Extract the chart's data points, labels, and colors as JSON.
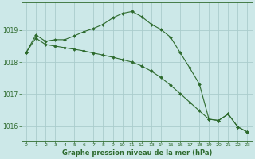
{
  "line1_x": [
    0,
    1,
    2,
    3,
    4,
    5,
    6,
    7,
    8,
    9,
    10,
    11,
    12,
    13,
    14,
    15,
    16,
    17,
    18,
    19,
    20,
    21,
    22,
    23
  ],
  "line1_y": [
    1018.3,
    1018.85,
    1018.65,
    1018.7,
    1018.7,
    1018.82,
    1018.95,
    1019.05,
    1019.18,
    1019.38,
    1019.52,
    1019.58,
    1019.42,
    1019.18,
    1019.02,
    1018.78,
    1018.3,
    1017.82,
    1017.32,
    1016.22,
    1016.18,
    1016.38,
    1015.98,
    1015.82
  ],
  "line2_x": [
    0,
    1,
    2,
    3,
    4,
    5,
    6,
    7,
    8,
    9,
    10,
    11,
    12,
    13,
    14,
    15,
    16,
    17,
    18,
    19,
    20,
    21,
    22,
    23
  ],
  "line2_y": [
    1018.3,
    1018.75,
    1018.55,
    1018.5,
    1018.45,
    1018.4,
    1018.35,
    1018.28,
    1018.22,
    1018.15,
    1018.08,
    1018.0,
    1017.88,
    1017.72,
    1017.52,
    1017.28,
    1017.02,
    1016.75,
    1016.48,
    1016.22,
    1016.18,
    1016.38,
    1015.98,
    1015.82
  ],
  "line_color": "#2d6a2d",
  "marker_color": "#2d6a2d",
  "bg_color": "#cce8e8",
  "grid_color_major": "#aacccc",
  "grid_color_minor": "#bbdddd",
  "axis_color": "#2d6a2d",
  "tick_color": "#2d6a2d",
  "label_color": "#2d6a2d",
  "xlabel": "Graphe pression niveau de la mer (hPa)",
  "yticks": [
    1016,
    1017,
    1018,
    1019
  ],
  "xticks": [
    0,
    1,
    2,
    3,
    4,
    5,
    6,
    7,
    8,
    9,
    10,
    11,
    12,
    13,
    14,
    15,
    16,
    17,
    18,
    19,
    20,
    21,
    22,
    23
  ],
  "ylim": [
    1015.55,
    1019.85
  ],
  "xlim": [
    -0.5,
    23.5
  ]
}
